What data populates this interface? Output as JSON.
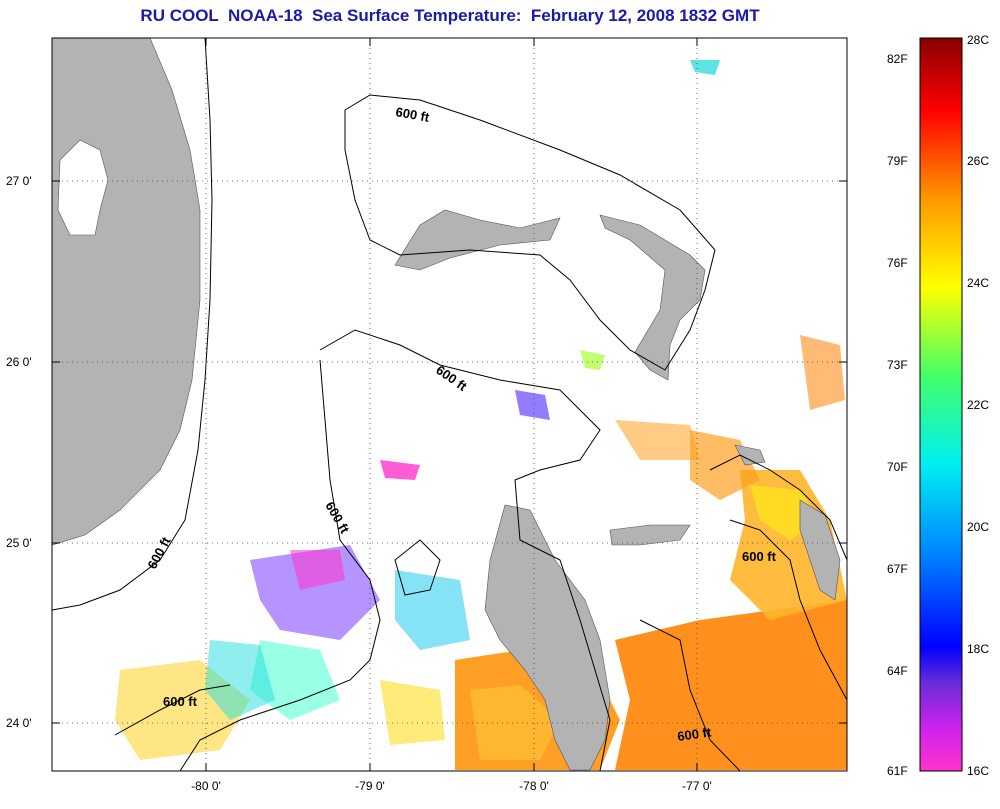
{
  "title": "RU COOL  NOAA-18  Sea Surface Temperature:  February 12, 2008 1832 GMT",
  "map": {
    "lon_range": [
      -80.95,
      -76.0
    ],
    "lat_range": [
      23.75,
      27.8
    ],
    "grid": "dotted",
    "land_color": "#b3b3b3",
    "sea_color": "#ffffff",
    "lat_ticks": [
      {
        "value": 24.0,
        "label": "24 0'"
      },
      {
        "value": 25.0,
        "label": "25 0'"
      },
      {
        "value": 26.0,
        "label": "26 0'"
      },
      {
        "value": 27.0,
        "label": "27 0'"
      }
    ],
    "lon_ticks": [
      {
        "value": -80.0,
        "label": "-80 0'"
      },
      {
        "value": -79.0,
        "label": "-79 0'"
      },
      {
        "value": -78.0,
        "label": "-78 0'"
      },
      {
        "value": -77.0,
        "label": "-77 0'"
      }
    ],
    "contour_labels": [
      {
        "text": "600 ft"
      },
      {
        "text": "600 ft"
      },
      {
        "text": "600 ft"
      },
      {
        "text": "600 ft"
      },
      {
        "text": "600 ft"
      },
      {
        "text": "600 ft"
      },
      {
        "text": "600 ft"
      }
    ]
  },
  "colorbar": {
    "fahrenheit_labels": [
      "82F",
      "79F",
      "76F",
      "73F",
      "70F",
      "67F",
      "64F",
      "61F"
    ],
    "celsius_labels": [
      "28C",
      "26C",
      "24C",
      "22C",
      "20C",
      "18C",
      "16C"
    ],
    "range_c": [
      16,
      28
    ],
    "colors": [
      "#ff33cc",
      "#a020f0",
      "#0000ff",
      "#00aaff",
      "#00ffee",
      "#33ff66",
      "#aaff00",
      "#ffff00",
      "#ffb000",
      "#ff7700",
      "#ff0000",
      "#8b0000"
    ]
  }
}
